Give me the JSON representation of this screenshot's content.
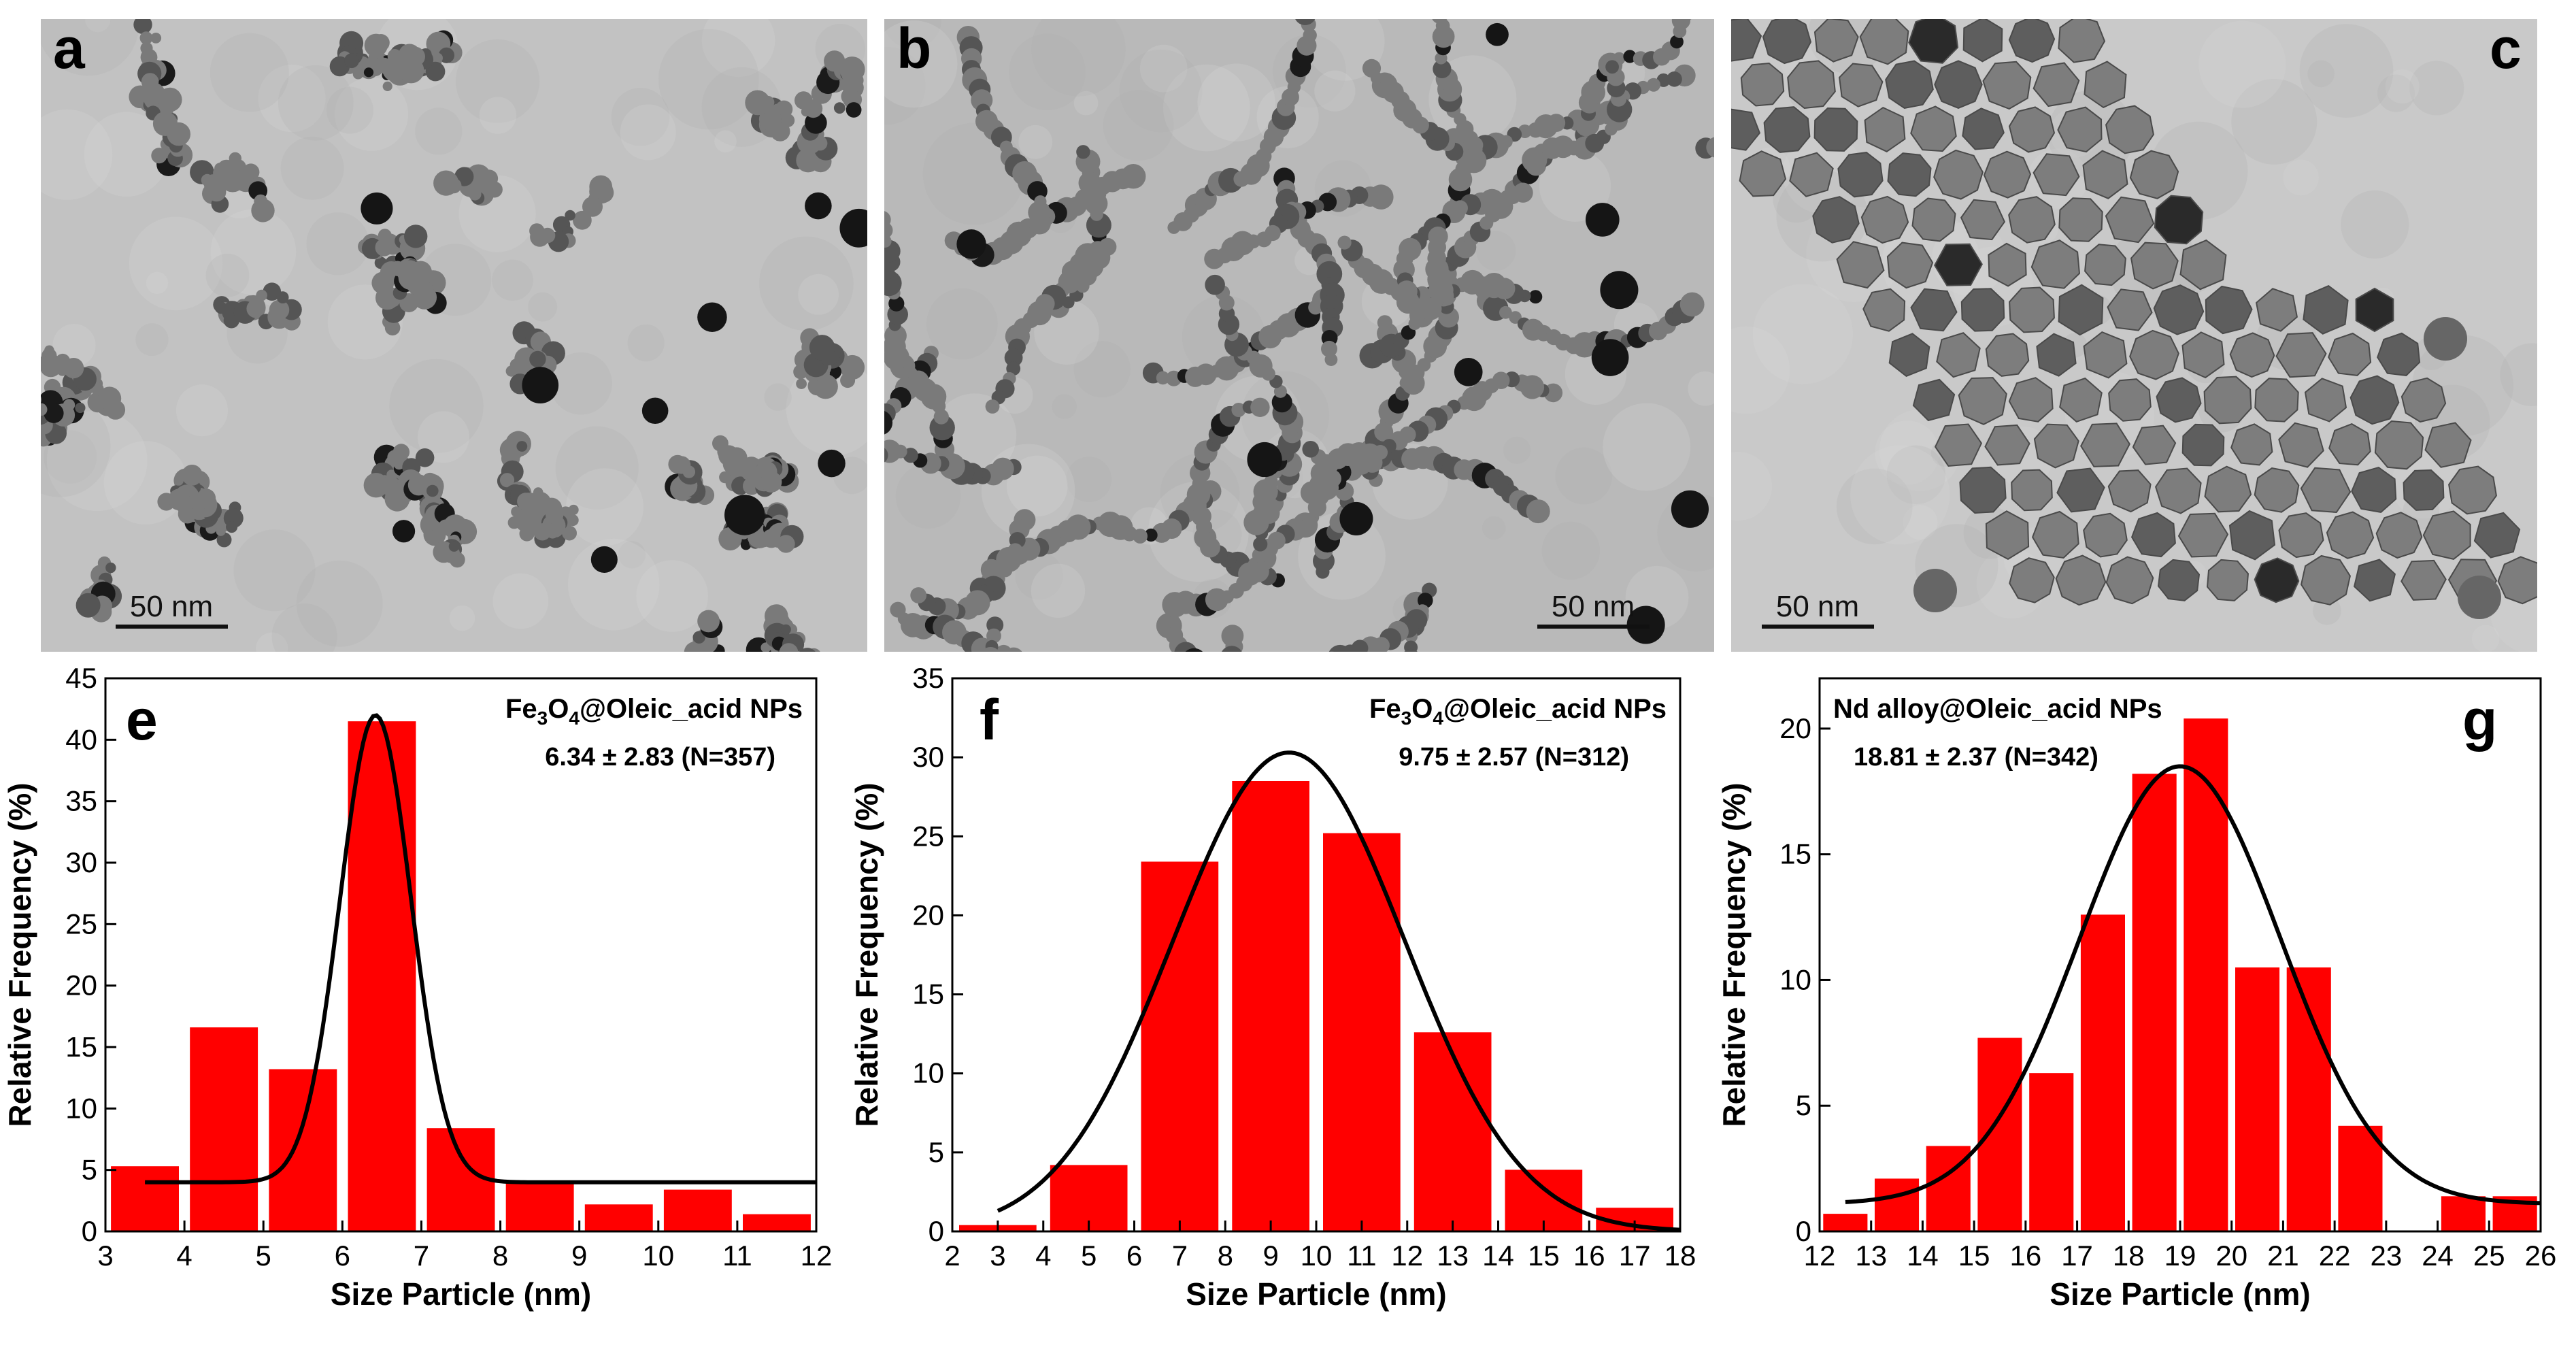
{
  "tem_panels": [
    {
      "letter": "a",
      "scale": "50 nm",
      "style": "cluster"
    },
    {
      "letter": "b",
      "scale": "50 nm",
      "style": "chain"
    },
    {
      "letter": "c",
      "scale": "50 nm",
      "style": "lattice"
    }
  ],
  "chart_data": [
    {
      "type": "bar",
      "letter": "e",
      "title": "Fe3O4@Oleic_acid NPs",
      "title_parts": [
        "Fe",
        "3",
        "O",
        "4",
        "@Oleic_acid NPs"
      ],
      "stats": "6.34 ± 2.83 (N=357)",
      "xlabel": "Size Particle (nm)",
      "ylabel": "Relative Frequency (%)",
      "xlim": [
        3,
        12
      ],
      "ylim": [
        0,
        45
      ],
      "xticks": [
        3,
        4,
        5,
        6,
        7,
        8,
        9,
        10,
        11,
        12
      ],
      "yticks": [
        0,
        5,
        10,
        15,
        20,
        25,
        30,
        35,
        40,
        45
      ],
      "bar_width": 0.86,
      "bars": [
        {
          "x": 3.5,
          "y": 5.3
        },
        {
          "x": 4.5,
          "y": 16.6
        },
        {
          "x": 5.5,
          "y": 13.2
        },
        {
          "x": 6.5,
          "y": 41.5
        },
        {
          "x": 7.5,
          "y": 8.4
        },
        {
          "x": 8.5,
          "y": 3.9
        },
        {
          "x": 9.5,
          "y": 2.2
        },
        {
          "x": 10.5,
          "y": 3.4
        },
        {
          "x": 11.5,
          "y": 1.4
        }
      ],
      "fit": {
        "x0": 6.42,
        "sigma": 0.45,
        "amp": 38.0,
        "base": 4.0,
        "from": 3.5,
        "to": 12.0
      },
      "colors": {
        "bar": "#ff0000",
        "fit": "#000000"
      }
    },
    {
      "type": "bar",
      "letter": "f",
      "title": "Fe3O4@Oleic_acid NPs",
      "title_parts": [
        "Fe",
        "3",
        "O",
        "4",
        "@Oleic_acid NPs"
      ],
      "stats": "9.75 ± 2.57 (N=312)",
      "xlabel": "Size Particle (nm)",
      "ylabel": "Relative Frequency (%)",
      "xlim": [
        2,
        18
      ],
      "ylim": [
        0,
        35
      ],
      "xticks": [
        2,
        3,
        4,
        5,
        6,
        7,
        8,
        9,
        10,
        11,
        12,
        13,
        14,
        15,
        16,
        17,
        18
      ],
      "yticks": [
        0,
        5,
        10,
        15,
        20,
        25,
        30,
        35
      ],
      "bar_width": 1.7,
      "bars": [
        {
          "x": 3,
          "y": 0.4
        },
        {
          "x": 5,
          "y": 4.2
        },
        {
          "x": 7,
          "y": 23.4
        },
        {
          "x": 9,
          "y": 28.5
        },
        {
          "x": 11,
          "y": 25.2
        },
        {
          "x": 13,
          "y": 12.6
        },
        {
          "x": 15,
          "y": 3.9
        },
        {
          "x": 17,
          "y": 1.5
        }
      ],
      "fit": {
        "x0": 9.4,
        "sigma": 2.55,
        "amp": 30.3,
        "base": 0,
        "from": 3.0,
        "to": 18.0
      },
      "colors": {
        "bar": "#ff0000",
        "fit": "#000000"
      }
    },
    {
      "type": "bar",
      "letter": "g",
      "title": "Nd alloy@Oleic_acid NPs",
      "title_parts": [
        "Nd alloy@Oleic_acid NPs"
      ],
      "stats": "18.81 ± 2.37 (N=342)",
      "xlabel": "Size Particle (nm)",
      "ylabel": "Relative Frequency (%)",
      "xlim": [
        12,
        26
      ],
      "ylim": [
        0,
        22
      ],
      "xticks": [
        12,
        13,
        14,
        15,
        16,
        17,
        18,
        19,
        20,
        21,
        22,
        23,
        24,
        25,
        26
      ],
      "yticks": [
        0,
        5,
        10,
        15,
        20
      ],
      "bar_width": 0.86,
      "bars": [
        {
          "x": 12.5,
          "y": 0.7
        },
        {
          "x": 13.5,
          "y": 2.1
        },
        {
          "x": 14.5,
          "y": 3.4
        },
        {
          "x": 15.5,
          "y": 7.7
        },
        {
          "x": 16.5,
          "y": 6.3
        },
        {
          "x": 17.5,
          "y": 12.6
        },
        {
          "x": 18.5,
          "y": 18.2
        },
        {
          "x": 19.5,
          "y": 20.4
        },
        {
          "x": 20.5,
          "y": 10.5
        },
        {
          "x": 21.5,
          "y": 10.5
        },
        {
          "x": 22.5,
          "y": 4.2
        },
        {
          "x": 24.5,
          "y": 1.4
        },
        {
          "x": 25.5,
          "y": 1.4
        }
      ],
      "fit": {
        "x0": 19.0,
        "sigma": 1.95,
        "amp": 17.4,
        "base": 1.1,
        "from": 12.5,
        "to": 26.0
      },
      "colors": {
        "bar": "#ff0000",
        "fit": "#000000"
      }
    }
  ]
}
